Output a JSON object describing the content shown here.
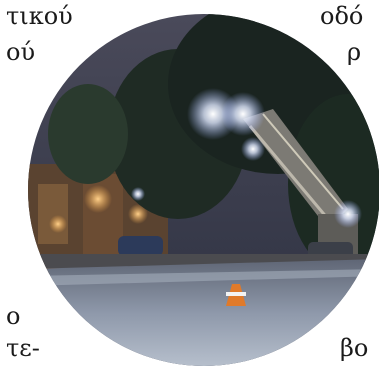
{
  "text_fragments": {
    "left_line1": "τικού",
    "left_line2": "ού",
    "left_line3": "ο",
    "left_line4": "τε-",
    "right_line1": "οδό",
    "right_line2": "ρ",
    "right_line3": "βο"
  },
  "photo": {
    "subject": "night road paving scene",
    "colors": {
      "sky": "#3a3f52",
      "trees": "#1d2a24",
      "road": "#8c95a6",
      "light": "#ffffff",
      "warm_light": "#f0a64a"
    }
  }
}
